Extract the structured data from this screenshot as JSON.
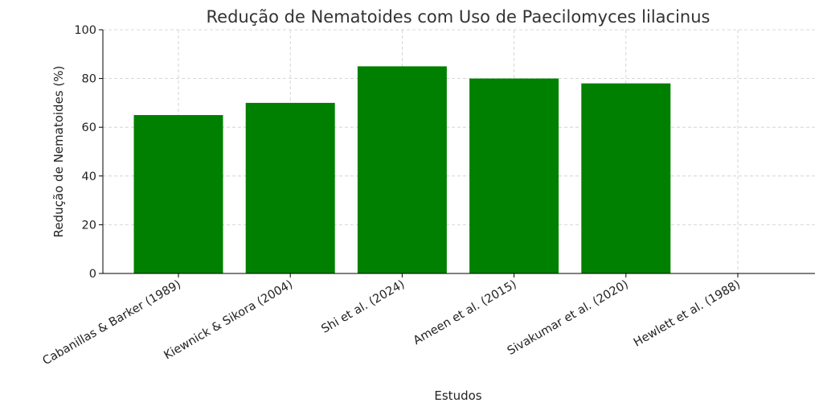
{
  "chart_data": {
    "type": "bar",
    "title": "Redução de Nematoides com Uso de Paecilomyces lilacinus",
    "xlabel": "Estudos",
    "ylabel": "Redução de Nematoides (%)",
    "categories": [
      "Cabanillas & Barker (1989)",
      "Kiewnick & Sikora (2004)",
      "Shi et al. (2024)",
      "Ameen et al. (2015)",
      "Sivakumar et al. (2020)",
      "Hewlett et al. (1988)"
    ],
    "values": [
      65,
      70,
      85,
      80,
      78,
      0
    ],
    "ylim": [
      0,
      100
    ],
    "yticks": [
      0,
      20,
      40,
      60,
      80,
      100
    ],
    "grid": true,
    "bar_color": "#008000"
  }
}
